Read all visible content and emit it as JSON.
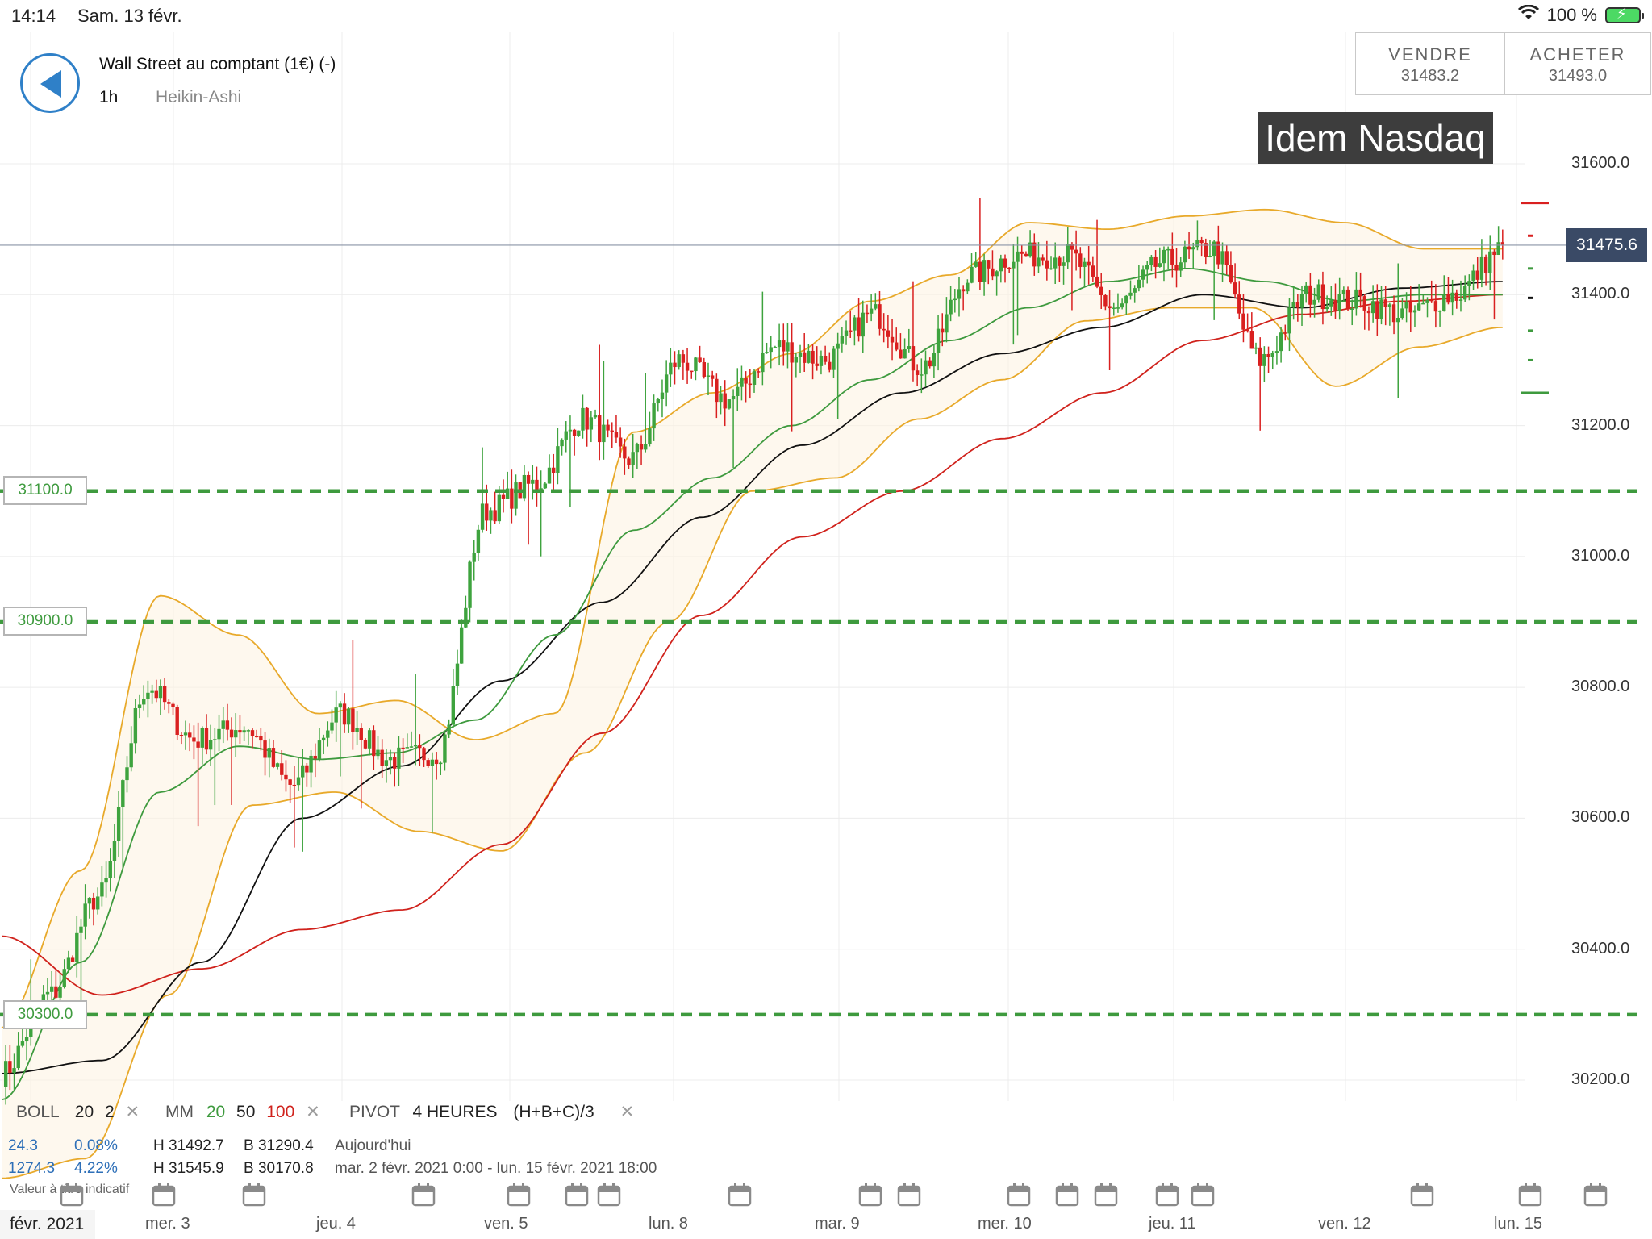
{
  "status": {
    "time": "14:14",
    "date": "Sam. 13 févr.",
    "battery": "100 %"
  },
  "header": {
    "title": "Wall Street au comptant (1€) (-)",
    "timeframe": "1h",
    "chart_type": "Heikin-Ashi"
  },
  "trade": {
    "sell_label": "VENDRE",
    "sell_price": "31483.2",
    "buy_label": "ACHETER",
    "buy_price": "31493.0"
  },
  "annotation": "Idem Nasdaq",
  "current_price_tag": "31475.6",
  "y_axis_labels": [
    "31600.0",
    "31400.0",
    "31200.0",
    "31000.0",
    "30800.0",
    "30600.0",
    "30400.0",
    "30200.0"
  ],
  "horizontal_line_labels": [
    "31100.0",
    "30900.0",
    "30300.0"
  ],
  "legend": {
    "boll": "BOLL",
    "boll_p1": "20",
    "boll_p2": "2",
    "mm": "MM",
    "mm_p1": "20",
    "mm_p2": "50",
    "mm_p3": "100",
    "pivot": "PIVOT",
    "pivot_tf": "4 HEURES",
    "pivot_formula": "(H+B+C)/3",
    "row2_a": "24.3",
    "row2_b": "0.08%",
    "row2_h": "H 31492.7",
    "row2_l": "B 31290.4",
    "row2_period": "Aujourd'hui",
    "row3_a": "1274.3",
    "row3_b": "4.22%",
    "row3_h": "H 31545.9",
    "row3_l": "B 30170.8",
    "row3_period": "mar. 2 févr. 2021 0:00 - lun. 15 févr. 2021 18:00",
    "value_hint": "Valeur à titre indicatif",
    "close_symbol": "✕"
  },
  "x_axis": {
    "first": "févr. 2021",
    "labels": [
      "mer. 3",
      "jeu. 4",
      "ven. 5",
      "lun. 8",
      "mar. 9",
      "mer. 10",
      "jeu. 11",
      "ven. 12",
      "lun. 15"
    ]
  },
  "colors": {
    "up": "#3ea33e",
    "down": "#d92020",
    "boll": "#e8a92a",
    "mm20": "#3e9a3e",
    "mm50": "#111111",
    "mm100": "#d0221c",
    "pivot": "#3e9a3e",
    "accent": "#2f80c8"
  },
  "chart_data": {
    "type": "candlestick",
    "title": "Wall Street au comptant (1€) (-)",
    "timeframe": "1h",
    "y_range": [
      30150,
      31680
    ],
    "current_price": 31475.6,
    "horizontal_levels": [
      31100,
      30900,
      30300
    ],
    "pivot_right_levels": [
      31540,
      31490,
      31440,
      31395,
      31345,
      31300,
      31250
    ],
    "trend_points": {
      "close": [
        30210,
        30330,
        30480,
        30800,
        30720,
        30740,
        30650,
        30760,
        30690,
        30700,
        31070,
        31110,
        31210,
        31150,
        31300,
        31240,
        31320,
        31300,
        31370,
        31290,
        31430,
        31460,
        31460,
        31380,
        31450,
        31470,
        31300,
        31400,
        31390,
        31370,
        31400,
        31470
      ],
      "boll_upper": [
        30280,
        30520,
        30940,
        30880,
        30760,
        30780,
        30720,
        30760,
        31190,
        31250,
        31310,
        31390,
        31430,
        31510,
        31500,
        31520,
        31530,
        31510,
        31470,
        31470
      ],
      "boll_lower": [
        30050,
        30080,
        30330,
        30620,
        30640,
        30580,
        30550,
        30700,
        30900,
        31100,
        31120,
        31210,
        31270,
        31360,
        31380,
        31380,
        31260,
        31320,
        31350
      ],
      "mm20": [
        30170,
        30380,
        30640,
        30710,
        30690,
        30700,
        30750,
        30880,
        31040,
        31120,
        31200,
        31270,
        31330,
        31380,
        31420,
        31440,
        31420,
        31390,
        31400,
        31400
      ],
      "mm50": [
        30210,
        30230,
        30380,
        30600,
        30680,
        30810,
        30930,
        31060,
        31170,
        31250,
        31310,
        31350,
        31400,
        31380,
        31410,
        31420
      ],
      "mm100": [
        30420,
        30330,
        30370,
        30430,
        30460,
        30560,
        30730,
        30910,
        31030,
        31100,
        31180,
        31250,
        31330,
        31370,
        31390,
        31400
      ]
    }
  }
}
